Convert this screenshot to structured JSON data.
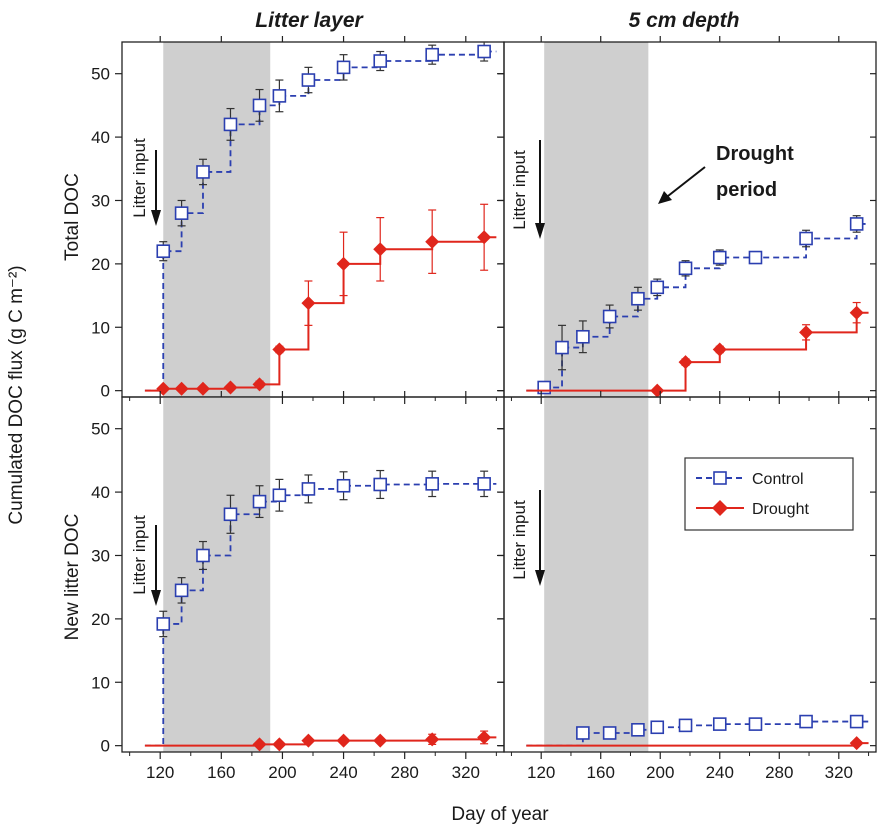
{
  "figure": {
    "ylabel": "Cumulated DOC flux (g C m⁻²)",
    "xlabel": "Day of year",
    "column_titles": [
      "Litter layer",
      "5 cm depth"
    ],
    "row_labels": [
      "Total DOC",
      "New litter DOC"
    ],
    "annotation_arrow": "Litter input",
    "drought_label_line1": "Drought",
    "drought_label_line2": "period",
    "legend": {
      "control": "Control",
      "drought": "Drought"
    },
    "colors": {
      "control": "#2b3fb0",
      "drought": "#e0261c",
      "shade": "#cfcfcf",
      "error_control": "#333333",
      "error_drought": "#e0261c"
    }
  },
  "chart_data": [
    {
      "type": "line",
      "panel": "Litter layer / Total DOC",
      "xlim": [
        95,
        345
      ],
      "ylim": [
        -1,
        55
      ],
      "xticks": [
        120,
        160,
        200,
        240,
        280,
        320
      ],
      "yticks": [
        0,
        10,
        20,
        30,
        40,
        50
      ],
      "shaded_period": [
        122,
        192
      ],
      "litter_input_day": 110,
      "series": [
        {
          "name": "Control",
          "step": true,
          "start": [
            110,
            0
          ],
          "end_x": 340,
          "x": [
            122,
            134,
            148,
            166,
            185,
            198,
            217,
            240,
            264,
            298,
            332
          ],
          "y": [
            22,
            28,
            34.5,
            42,
            45,
            46.5,
            49,
            51,
            52,
            53,
            53.5
          ],
          "err": [
            1.5,
            2,
            2,
            2.5,
            2.5,
            2.5,
            2,
            2,
            1.5,
            1.5,
            1.5
          ]
        },
        {
          "name": "Drought",
          "step": true,
          "start": [
            110,
            0
          ],
          "end_x": 340,
          "x": [
            122,
            134,
            148,
            166,
            185,
            198,
            217,
            240,
            264,
            298,
            332
          ],
          "y": [
            0.3,
            0.3,
            0.3,
            0.5,
            1,
            6.5,
            13.8,
            20,
            22.3,
            23.5,
            24.2
          ],
          "err": [
            0,
            0,
            0,
            0,
            0.5,
            0.5,
            3.5,
            5,
            5,
            5,
            5.2
          ]
        }
      ]
    },
    {
      "type": "line",
      "panel": "5 cm depth / Total DOC",
      "xlim": [
        95,
        345
      ],
      "ylim": [
        -1,
        55
      ],
      "xticks": [
        120,
        160,
        200,
        240,
        280,
        320
      ],
      "yticks": [
        0,
        10,
        20,
        30,
        40,
        50
      ],
      "shaded_period": [
        122,
        192
      ],
      "litter_input_day": 110,
      "series": [
        {
          "name": "Control",
          "step": true,
          "start": [
            110,
            0
          ],
          "end_x": 340,
          "x": [
            122,
            134,
            148,
            166,
            185,
            198,
            217,
            240,
            264,
            298,
            332
          ],
          "y": [
            0.5,
            6.8,
            8.5,
            11.7,
            14.5,
            16.3,
            19.3,
            21,
            21,
            24,
            26.3
          ],
          "err": [
            0,
            3.5,
            2.5,
            1.8,
            1.8,
            1.3,
            1.2,
            1.2,
            0,
            1.3,
            1.3
          ]
        },
        {
          "name": "Drought",
          "step": true,
          "start": [
            110,
            0
          ],
          "end_x": 340,
          "x": [
            198,
            217,
            240,
            298,
            332
          ],
          "y": [
            0,
            4.5,
            6.5,
            9.2,
            12.3
          ],
          "err": [
            0,
            0.5,
            0.5,
            1.2,
            1.6
          ]
        }
      ]
    },
    {
      "type": "line",
      "panel": "Litter layer / New litter DOC",
      "xlim": [
        95,
        345
      ],
      "ylim": [
        -1,
        55
      ],
      "xticks": [
        120,
        160,
        200,
        240,
        280,
        320
      ],
      "yticks": [
        0,
        10,
        20,
        30,
        40,
        50
      ],
      "shaded_period": [
        122,
        192
      ],
      "litter_input_day": 110,
      "series": [
        {
          "name": "Control",
          "step": true,
          "start": [
            110,
            0
          ],
          "end_x": 340,
          "x": [
            122,
            134,
            148,
            166,
            185,
            198,
            217,
            240,
            264,
            298,
            332
          ],
          "y": [
            19.2,
            24.5,
            30,
            36.5,
            38.5,
            39.5,
            40.5,
            41,
            41.2,
            41.3,
            41.3
          ],
          "err": [
            2,
            2,
            2.2,
            3,
            2.5,
            2.5,
            2.2,
            2.2,
            2.2,
            2,
            2
          ]
        },
        {
          "name": "Drought",
          "step": true,
          "start": [
            110,
            0
          ],
          "end_x": 340,
          "x": [
            185,
            198,
            217,
            240,
            264,
            298,
            332
          ],
          "y": [
            0.2,
            0.2,
            0.8,
            0.8,
            0.8,
            1,
            1.3
          ],
          "err": [
            0,
            0,
            0,
            0,
            0,
            0.8,
            1
          ]
        }
      ]
    },
    {
      "type": "line",
      "panel": "5 cm depth / New litter DOC",
      "xlim": [
        95,
        345
      ],
      "ylim": [
        -1,
        55
      ],
      "xticks": [
        120,
        160,
        200,
        240,
        280,
        320
      ],
      "yticks": [
        0,
        10,
        20,
        30,
        40,
        50
      ],
      "shaded_period": [
        122,
        192
      ],
      "litter_input_day": 110,
      "series": [
        {
          "name": "Control",
          "step": true,
          "start": [
            110,
            0
          ],
          "end_x": 340,
          "x": [
            148,
            166,
            185,
            198,
            217,
            240,
            264,
            298,
            332
          ],
          "y": [
            2,
            2,
            2.5,
            2.9,
            3.2,
            3.4,
            3.4,
            3.8,
            3.8
          ],
          "err": [
            0.5,
            0.5,
            0.5,
            0.3,
            0.3,
            0.3,
            0.2,
            0.2,
            0.3
          ]
        },
        {
          "name": "Drought",
          "step": true,
          "start": [
            110,
            0
          ],
          "end_x": 340,
          "x": [
            332
          ],
          "y": [
            0.4
          ],
          "err": [
            0
          ]
        }
      ]
    }
  ]
}
